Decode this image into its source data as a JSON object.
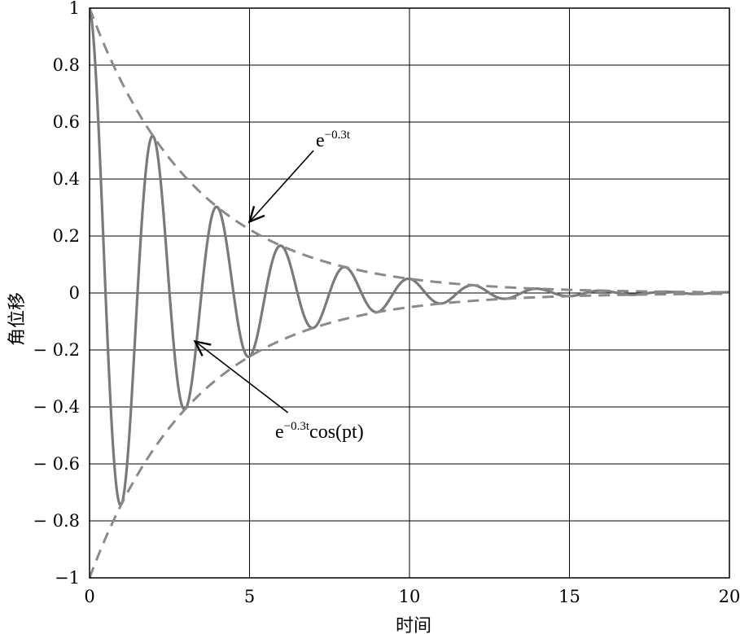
{
  "chart_data": {
    "type": "line",
    "xlabel": "时间",
    "ylabel": "角位移",
    "xlim": [
      0,
      20
    ],
    "ylim": [
      -1,
      1
    ],
    "x_ticks": [
      0,
      5,
      10,
      15,
      20
    ],
    "x_tick_labels": [
      "0",
      "5",
      "10",
      "15",
      "20"
    ],
    "y_ticks": [
      1,
      0.8,
      0.6,
      0.4,
      0.2,
      0,
      -0.2,
      -0.4,
      -0.6,
      -0.8,
      -1
    ],
    "y_tick_labels": [
      "1",
      "0.8",
      "0.6",
      "0.4",
      "0.2",
      "0",
      "− 0.2",
      "− 0.4",
      "− 0.6",
      "− 0.8",
      "−1"
    ],
    "grid": true,
    "series": [
      {
        "style": "solid",
        "color": "#7a7a7a",
        "function": "e^(-0.3t)·cos(πt)",
        "decay": 0.3,
        "frequency": 3.14159,
        "x": [
          0,
          1,
          2,
          3,
          4,
          5,
          6,
          7,
          8,
          9,
          10,
          11,
          12,
          13,
          14,
          15,
          16,
          17,
          18,
          19,
          20
        ],
        "values": [
          1.0,
          -0.741,
          0.549,
          -0.407,
          0.301,
          -0.223,
          0.165,
          -0.122,
          0.091,
          -0.067,
          0.05,
          -0.037,
          0.027,
          -0.02,
          0.015,
          -0.011,
          0.008,
          -0.006,
          0.005,
          -0.003,
          0.002
        ]
      },
      {
        "style": "dashed",
        "color": "#8a8a8a",
        "function": "e^(-0.3t)",
        "decay": 0.3,
        "x": [
          0,
          1,
          2,
          3,
          4,
          5,
          6,
          7,
          8,
          9,
          10,
          11,
          12,
          13,
          14,
          15,
          16,
          17,
          18,
          19,
          20
        ],
        "values": [
          1.0,
          0.741,
          0.549,
          0.407,
          0.301,
          0.223,
          0.165,
          0.122,
          0.091,
          0.067,
          0.05,
          0.037,
          0.027,
          0.02,
          0.015,
          0.011,
          0.008,
          0.006,
          0.005,
          0.003,
          0.002
        ]
      },
      {
        "style": "dashed",
        "color": "#8a8a8a",
        "function": "-e^(-0.3t)",
        "decay": 0.3,
        "x": [
          0,
          1,
          2,
          3,
          4,
          5,
          6,
          7,
          8,
          9,
          10,
          11,
          12,
          13,
          14,
          15,
          16,
          17,
          18,
          19,
          20
        ],
        "values": [
          -1.0,
          -0.741,
          -0.549,
          -0.407,
          -0.301,
          -0.223,
          -0.165,
          -0.122,
          -0.091,
          -0.067,
          -0.05,
          -0.037,
          -0.027,
          -0.02,
          -0.015,
          -0.011,
          -0.008,
          -0.006,
          -0.005,
          -0.003,
          -0.002
        ]
      }
    ],
    "annotations": [
      {
        "text_base": "e",
        "text_sup": "−0.3t",
        "text_rest": "",
        "arrow_to": [
          5.0,
          0.25
        ],
        "arrow_from": [
          7.0,
          0.5
        ]
      },
      {
        "text_base": "e",
        "text_sup": "−0.3t",
        "text_rest": "cos(pt)",
        "arrow_to": [
          3.3,
          -0.17
        ],
        "arrow_from": [
          6.2,
          -0.42
        ]
      }
    ]
  }
}
